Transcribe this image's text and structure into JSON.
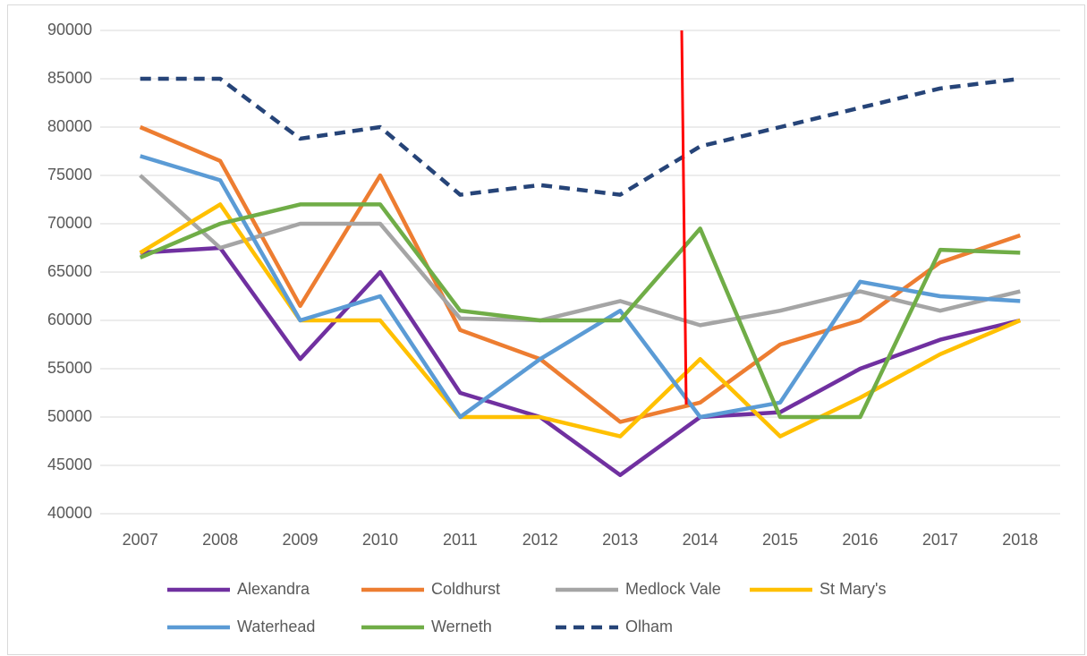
{
  "chart_data": {
    "type": "line",
    "categories": [
      "2007",
      "2008",
      "2009",
      "2010",
      "2011",
      "2012",
      "2013",
      "2014",
      "2015",
      "2016",
      "2017",
      "2018"
    ],
    "series": [
      {
        "name": "Alexandra",
        "color": "#7030a0",
        "values": [
          67000,
          67500,
          56000,
          65000,
          52500,
          50000,
          44000,
          50000,
          50500,
          55000,
          58000,
          60000
        ]
      },
      {
        "name": "Coldhurst",
        "color": "#ed7d31",
        "values": [
          80000,
          76500,
          61500,
          75000,
          59000,
          56000,
          49500,
          51500,
          57500,
          60000,
          66000,
          68800
        ]
      },
      {
        "name": "Medlock Vale",
        "color": "#a5a5a5",
        "values": [
          75000,
          67500,
          70000,
          70000,
          60200,
          60000,
          62000,
          59500,
          61000,
          63000,
          61000,
          63000
        ]
      },
      {
        "name": "St Mary's",
        "color": "#ffc000",
        "values": [
          67000,
          72000,
          60000,
          60000,
          50000,
          50000,
          48000,
          56000,
          48000,
          52000,
          56500,
          60000
        ]
      },
      {
        "name": "Waterhead",
        "color": "#5b9bd5",
        "values": [
          77000,
          74500,
          60000,
          62500,
          50000,
          56000,
          61000,
          50000,
          51500,
          64000,
          62500,
          62000
        ]
      },
      {
        "name": "Werneth",
        "color": "#70ad47",
        "values": [
          66500,
          70000,
          72000,
          72000,
          61000,
          60000,
          60000,
          69500,
          50000,
          50000,
          67300,
          67000
        ]
      },
      {
        "name": "Olham",
        "color": "#264478",
        "dashed": true,
        "values": [
          85000,
          85000,
          78800,
          80000,
          73000,
          74000,
          73000,
          78000,
          80000,
          82000,
          84000,
          85000
        ]
      }
    ],
    "ylim": [
      40000,
      90000
    ],
    "yticks": [
      40000,
      45000,
      50000,
      55000,
      60000,
      65000,
      70000,
      75000,
      80000,
      85000,
      90000
    ],
    "grid": true,
    "legend": "bottom"
  }
}
